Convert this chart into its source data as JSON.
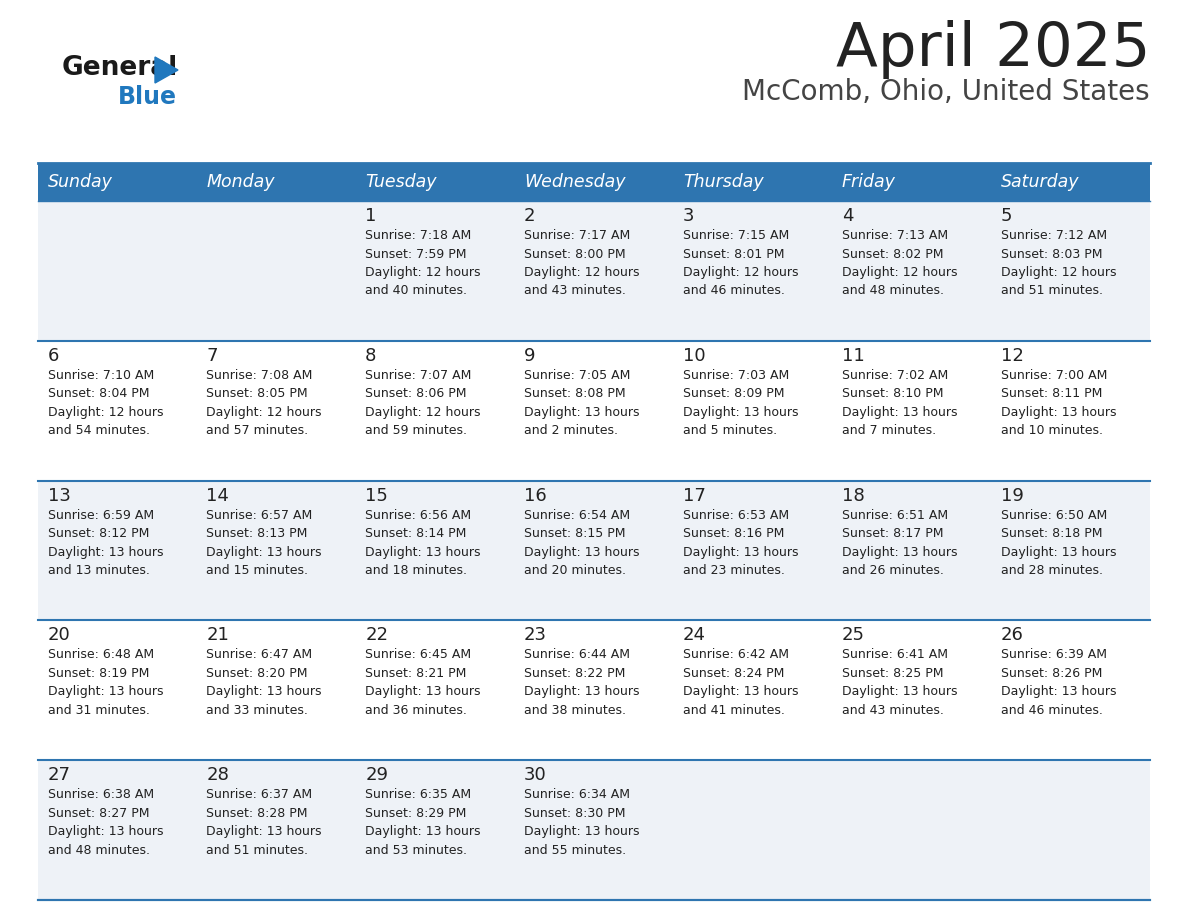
{
  "title": "April 2025",
  "subtitle": "McComb, Ohio, United States",
  "days_of_week": [
    "Sunday",
    "Monday",
    "Tuesday",
    "Wednesday",
    "Thursday",
    "Friday",
    "Saturday"
  ],
  "header_bg": "#2e75b0",
  "header_text": "#ffffff",
  "row_bg_odd": "#eef2f7",
  "row_bg_even": "#ffffff",
  "divider_color": "#2e75b0",
  "text_color": "#222222",
  "title_color": "#222222",
  "subtitle_color": "#444444",
  "logo_general_color": "#1a1a1a",
  "logo_blue_color": "#2078be",
  "weeks": [
    [
      {
        "day": null,
        "info": null
      },
      {
        "day": null,
        "info": null
      },
      {
        "day": 1,
        "info": "Sunrise: 7:18 AM\nSunset: 7:59 PM\nDaylight: 12 hours\nand 40 minutes."
      },
      {
        "day": 2,
        "info": "Sunrise: 7:17 AM\nSunset: 8:00 PM\nDaylight: 12 hours\nand 43 minutes."
      },
      {
        "day": 3,
        "info": "Sunrise: 7:15 AM\nSunset: 8:01 PM\nDaylight: 12 hours\nand 46 minutes."
      },
      {
        "day": 4,
        "info": "Sunrise: 7:13 AM\nSunset: 8:02 PM\nDaylight: 12 hours\nand 48 minutes."
      },
      {
        "day": 5,
        "info": "Sunrise: 7:12 AM\nSunset: 8:03 PM\nDaylight: 12 hours\nand 51 minutes."
      }
    ],
    [
      {
        "day": 6,
        "info": "Sunrise: 7:10 AM\nSunset: 8:04 PM\nDaylight: 12 hours\nand 54 minutes."
      },
      {
        "day": 7,
        "info": "Sunrise: 7:08 AM\nSunset: 8:05 PM\nDaylight: 12 hours\nand 57 minutes."
      },
      {
        "day": 8,
        "info": "Sunrise: 7:07 AM\nSunset: 8:06 PM\nDaylight: 12 hours\nand 59 minutes."
      },
      {
        "day": 9,
        "info": "Sunrise: 7:05 AM\nSunset: 8:08 PM\nDaylight: 13 hours\nand 2 minutes."
      },
      {
        "day": 10,
        "info": "Sunrise: 7:03 AM\nSunset: 8:09 PM\nDaylight: 13 hours\nand 5 minutes."
      },
      {
        "day": 11,
        "info": "Sunrise: 7:02 AM\nSunset: 8:10 PM\nDaylight: 13 hours\nand 7 minutes."
      },
      {
        "day": 12,
        "info": "Sunrise: 7:00 AM\nSunset: 8:11 PM\nDaylight: 13 hours\nand 10 minutes."
      }
    ],
    [
      {
        "day": 13,
        "info": "Sunrise: 6:59 AM\nSunset: 8:12 PM\nDaylight: 13 hours\nand 13 minutes."
      },
      {
        "day": 14,
        "info": "Sunrise: 6:57 AM\nSunset: 8:13 PM\nDaylight: 13 hours\nand 15 minutes."
      },
      {
        "day": 15,
        "info": "Sunrise: 6:56 AM\nSunset: 8:14 PM\nDaylight: 13 hours\nand 18 minutes."
      },
      {
        "day": 16,
        "info": "Sunrise: 6:54 AM\nSunset: 8:15 PM\nDaylight: 13 hours\nand 20 minutes."
      },
      {
        "day": 17,
        "info": "Sunrise: 6:53 AM\nSunset: 8:16 PM\nDaylight: 13 hours\nand 23 minutes."
      },
      {
        "day": 18,
        "info": "Sunrise: 6:51 AM\nSunset: 8:17 PM\nDaylight: 13 hours\nand 26 minutes."
      },
      {
        "day": 19,
        "info": "Sunrise: 6:50 AM\nSunset: 8:18 PM\nDaylight: 13 hours\nand 28 minutes."
      }
    ],
    [
      {
        "day": 20,
        "info": "Sunrise: 6:48 AM\nSunset: 8:19 PM\nDaylight: 13 hours\nand 31 minutes."
      },
      {
        "day": 21,
        "info": "Sunrise: 6:47 AM\nSunset: 8:20 PM\nDaylight: 13 hours\nand 33 minutes."
      },
      {
        "day": 22,
        "info": "Sunrise: 6:45 AM\nSunset: 8:21 PM\nDaylight: 13 hours\nand 36 minutes."
      },
      {
        "day": 23,
        "info": "Sunrise: 6:44 AM\nSunset: 8:22 PM\nDaylight: 13 hours\nand 38 minutes."
      },
      {
        "day": 24,
        "info": "Sunrise: 6:42 AM\nSunset: 8:24 PM\nDaylight: 13 hours\nand 41 minutes."
      },
      {
        "day": 25,
        "info": "Sunrise: 6:41 AM\nSunset: 8:25 PM\nDaylight: 13 hours\nand 43 minutes."
      },
      {
        "day": 26,
        "info": "Sunrise: 6:39 AM\nSunset: 8:26 PM\nDaylight: 13 hours\nand 46 minutes."
      }
    ],
    [
      {
        "day": 27,
        "info": "Sunrise: 6:38 AM\nSunset: 8:27 PM\nDaylight: 13 hours\nand 48 minutes."
      },
      {
        "day": 28,
        "info": "Sunrise: 6:37 AM\nSunset: 8:28 PM\nDaylight: 13 hours\nand 51 minutes."
      },
      {
        "day": 29,
        "info": "Sunrise: 6:35 AM\nSunset: 8:29 PM\nDaylight: 13 hours\nand 53 minutes."
      },
      {
        "day": 30,
        "info": "Sunrise: 6:34 AM\nSunset: 8:30 PM\nDaylight: 13 hours\nand 55 minutes."
      },
      {
        "day": null,
        "info": null
      },
      {
        "day": null,
        "info": null
      },
      {
        "day": null,
        "info": null
      }
    ]
  ]
}
